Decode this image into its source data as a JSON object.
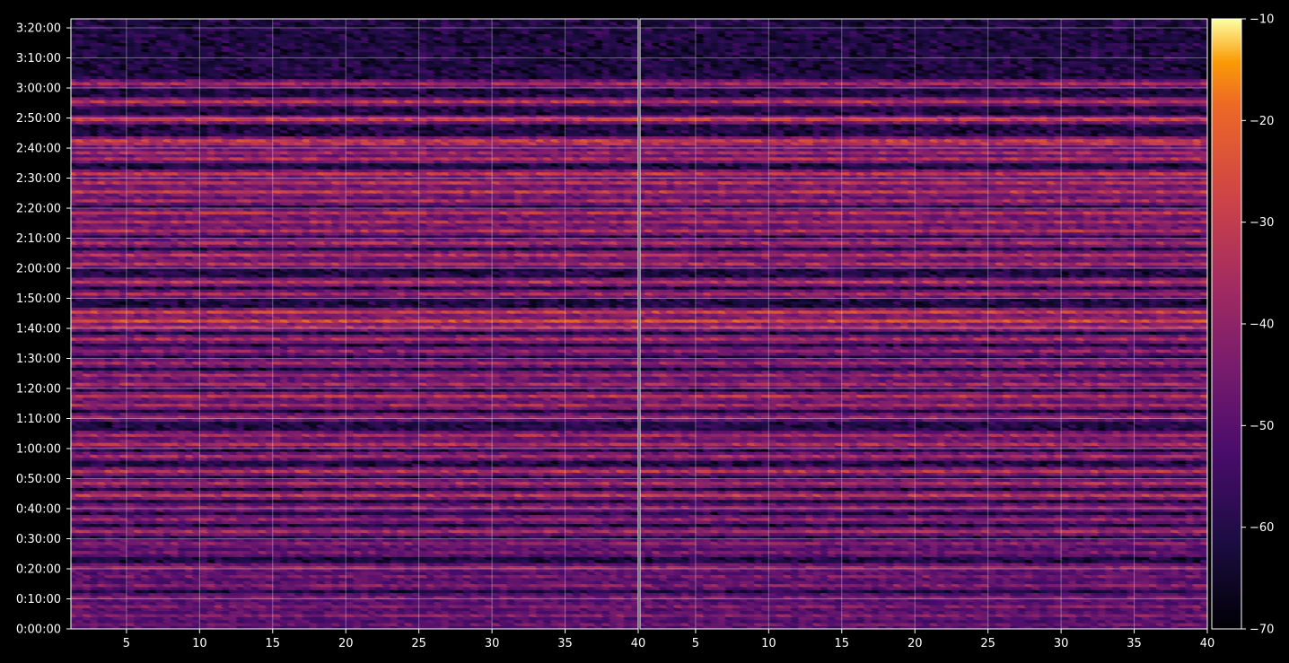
{
  "chart_data": {
    "type": "heatmap",
    "title": "",
    "xlabel": "",
    "ylabel": "",
    "colormap": "inferno",
    "background": "#000000",
    "grid": true,
    "grid_color": "#ffffff",
    "panels": [
      {
        "name": "",
        "xlim": [
          1.2,
          40
        ],
        "x_ticks": [
          5,
          10,
          15,
          20,
          25,
          30,
          35,
          40
        ],
        "x_tick_labels": [
          "5",
          "10",
          "15",
          "20",
          "25",
          "30",
          "35",
          "40"
        ]
      },
      {
        "name": "",
        "xlim": [
          1.2,
          40
        ],
        "x_ticks": [
          5,
          10,
          15,
          20,
          25,
          30,
          35,
          40
        ],
        "x_tick_labels": [
          "5",
          "10",
          "15",
          "20",
          "25",
          "30",
          "35",
          "40"
        ]
      }
    ],
    "y_ticks_seconds": [
      0,
      600,
      1200,
      1800,
      2400,
      3000,
      3600,
      4200,
      4800,
      5400,
      6000,
      6600,
      7200,
      7800,
      8400,
      9000,
      9600,
      10200,
      10800,
      11400,
      12000
    ],
    "y_tick_labels": [
      "0:00:00",
      "0:10:00",
      "0:20:00",
      "0:30:00",
      "0:40:00",
      "0:50:00",
      "1:00:00",
      "1:10:00",
      "1:20:00",
      "1:30:00",
      "1:40:00",
      "1:50:00",
      "2:00:00",
      "2:10:00",
      "2:20:00",
      "2:30:00",
      "2:40:00",
      "2:50:00",
      "3:00:00",
      "3:10:00",
      "3:20:00"
    ],
    "ylim_seconds": [
      0,
      12180
    ],
    "colorbar": {
      "vmin": -70,
      "vmax": -10,
      "ticks": [
        -70,
        -60,
        -50,
        -40,
        -30,
        -20,
        -10
      ],
      "tick_labels": [
        "−70",
        "−60",
        "−50",
        "−40",
        "−30",
        "−20",
        "−10"
      ]
    },
    "time_bands": [
      {
        "t": 10860,
        "level": -37
      },
      {
        "t": 10500,
        "level": -33
      },
      {
        "t": 10140,
        "level": -31
      },
      {
        "t": 9720,
        "level": -30
      },
      {
        "t": 9660,
        "level": -34
      },
      {
        "t": 9480,
        "level": -37
      },
      {
        "t": 9360,
        "level": -34
      },
      {
        "t": 9060,
        "level": -32
      },
      {
        "t": 8880,
        "level": -33
      },
      {
        "t": 8700,
        "level": -31
      },
      {
        "t": 8520,
        "level": -36
      },
      {
        "t": 8280,
        "level": -33
      },
      {
        "t": 8100,
        "level": -35
      },
      {
        "t": 7920,
        "level": -34
      },
      {
        "t": 7680,
        "level": -35
      },
      {
        "t": 7440,
        "level": -33
      },
      {
        "t": 7260,
        "level": -34
      },
      {
        "t": 6900,
        "level": -32
      },
      {
        "t": 6660,
        "level": -36
      },
      {
        "t": 6300,
        "level": -29
      },
      {
        "t": 6120,
        "level": -26
      },
      {
        "t": 6000,
        "level": -33
      },
      {
        "t": 5760,
        "level": -35
      },
      {
        "t": 5520,
        "level": -40
      },
      {
        "t": 5280,
        "level": -38
      },
      {
        "t": 5040,
        "level": -37
      },
      {
        "t": 4860,
        "level": -36
      },
      {
        "t": 4620,
        "level": -33
      },
      {
        "t": 4440,
        "level": -36
      },
      {
        "t": 4200,
        "level": -39
      },
      {
        "t": 3840,
        "level": -36
      },
      {
        "t": 3660,
        "level": -34
      },
      {
        "t": 3420,
        "level": -36
      },
      {
        "t": 3120,
        "level": -33
      },
      {
        "t": 2880,
        "level": -35
      },
      {
        "t": 2640,
        "level": -31
      },
      {
        "t": 2400,
        "level": -40
      },
      {
        "t": 2160,
        "level": -39
      },
      {
        "t": 1920,
        "level": -36
      },
      {
        "t": 1680,
        "level": -41
      },
      {
        "t": 1500,
        "level": -44
      },
      {
        "t": 1200,
        "level": -39
      },
      {
        "t": 1020,
        "level": -44
      },
      {
        "t": 840,
        "level": -42
      },
      {
        "t": 600,
        "level": -44
      },
      {
        "t": 420,
        "level": -43
      },
      {
        "t": 240,
        "level": -42
      },
      {
        "t": 60,
        "level": -46
      }
    ]
  }
}
